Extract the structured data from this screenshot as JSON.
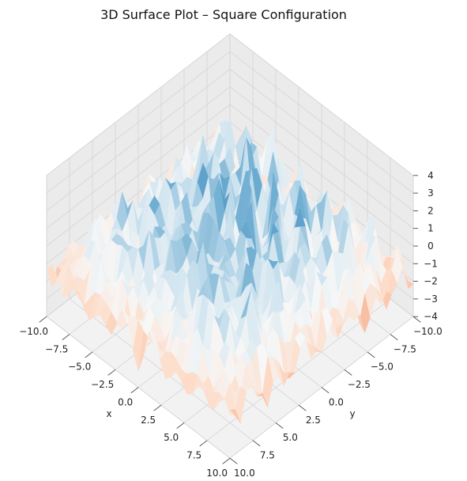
{
  "chart_data": {
    "type": "surface",
    "title": "3D Surface Plot – Square Configuration",
    "xlabel": "x",
    "ylabel": "y",
    "zlabel": "",
    "xlim": [
      -10,
      10
    ],
    "ylim": [
      -10,
      10
    ],
    "zlim": [
      -4,
      4
    ],
    "x_ticks": [
      10.0,
      7.5,
      5.0,
      2.5,
      0.0,
      -2.5,
      -5.0,
      -7.5,
      -10.0
    ],
    "y_ticks": [
      -10.0,
      -7.5,
      -5.0,
      -2.5,
      0.0,
      2.5,
      5.0,
      7.5,
      10.0
    ],
    "z_ticks": [
      4,
      3,
      2,
      1,
      0,
      -1,
      -2,
      -3,
      -4
    ],
    "x_tick_labels": [
      "10.0",
      "7.5",
      "5.0",
      "2.5",
      "0.0",
      "−2.5",
      "−5.0",
      "−7.5",
      "−10.0"
    ],
    "y_tick_labels": [
      "−10.0",
      "−7.5",
      "−5.0",
      "−2.5",
      "0.0",
      "2.5",
      "5.0",
      "7.5",
      "10.0"
    ],
    "z_tick_labels": [
      "4",
      "3",
      "2",
      "1",
      "0",
      "−1",
      "−2",
      "−3",
      "−4"
    ],
    "colormap": "RdBu",
    "colormap_colors": [
      "#b2182b",
      "#ef8a62",
      "#fddbc7",
      "#f7f7f7",
      "#d1e5f0",
      "#67a9cf",
      "#2166ac",
      "#08306b"
    ],
    "grid": true,
    "view": {
      "elevation": 45,
      "azimuth": 45
    },
    "surface_centers": [
      [
        -5,
        -5
      ],
      [
        -5,
        5
      ],
      [
        5,
        -5
      ],
      [
        5,
        5
      ],
      [
        0,
        0
      ]
    ],
    "z_range_approx": [
      -4,
      4
    ]
  }
}
